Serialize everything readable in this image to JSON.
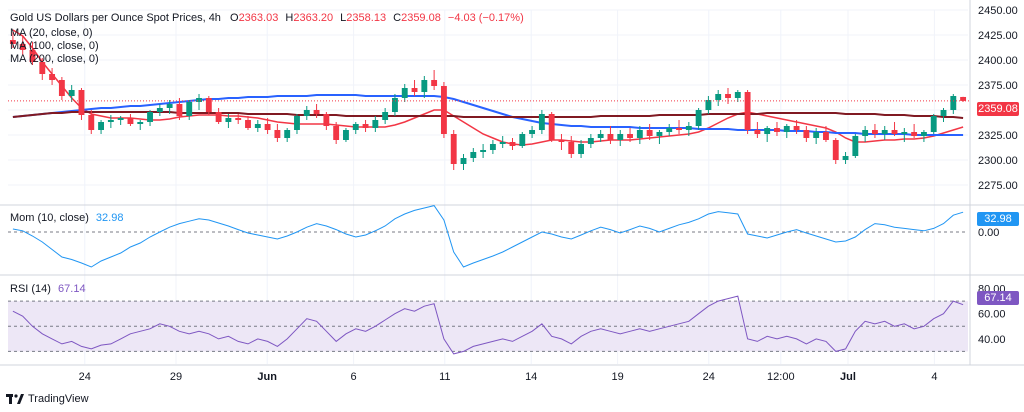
{
  "header": {
    "symbol": "Gold US Dollars per Ounce Spot Prices, 4h",
    "o_label": "O",
    "o_value": "2363.03",
    "h_label": "H",
    "h_value": "2363.20",
    "l_label": "L",
    "l_value": "2358.13",
    "c_label": "C",
    "c_value": "2359.08",
    "change": "−4.03 (−0.17%)"
  },
  "indicators": {
    "ma20": "MA (20, close, 0)",
    "ma100": "MA (100, close, 0)",
    "ma200": "MA (200, close, 0)",
    "mom_label": "Mom (10, close)",
    "mom_value": "32.98",
    "rsi_label": "RSI (14)",
    "rsi_value": "67.14"
  },
  "price_tag": "2359.08",
  "mom_tag": "32.98",
  "rsi_tag": "67.14",
  "brand": "TradingView",
  "colors": {
    "up": "#089981",
    "down": "#f23645",
    "ma20": "#f23645",
    "ma100": "#2962ff",
    "ma200": "#801922",
    "mom": "#2196f3",
    "rsi": "#7e57c2",
    "rsi_band": "#ede7f6"
  },
  "chart_data": [
    {
      "type": "candlestick",
      "title": "Gold US Dollars per Ounce Spot Prices, 4h",
      "ylim": [
        2275,
        2450
      ],
      "yticks": [
        "2450.00",
        "2425.00",
        "2400.00",
        "2375.00",
        "2350.00",
        "2325.00",
        "2300.00",
        "2275.00"
      ],
      "x_labels": [
        "24",
        "29",
        "Jun",
        "6",
        "11",
        "14",
        "19",
        "24",
        "12:00",
        "Jul",
        "4"
      ],
      "ohlc": [
        [
          2420,
          2428,
          2412,
          2416
        ],
        [
          2416,
          2424,
          2405,
          2410
        ],
        [
          2410,
          2418,
          2395,
          2398
        ],
        [
          2398,
          2402,
          2380,
          2386
        ],
        [
          2386,
          2392,
          2375,
          2380
        ],
        [
          2380,
          2383,
          2360,
          2364
        ],
        [
          2364,
          2375,
          2358,
          2370
        ],
        [
          2370,
          2372,
          2340,
          2345
        ],
        [
          2345,
          2350,
          2326,
          2330
        ],
        [
          2330,
          2340,
          2326,
          2338
        ],
        [
          2338,
          2345,
          2332,
          2340
        ],
        [
          2340,
          2344,
          2335,
          2342
        ],
        [
          2342,
          2346,
          2334,
          2336
        ],
        [
          2336,
          2340,
          2330,
          2338
        ],
        [
          2338,
          2350,
          2334,
          2348
        ],
        [
          2348,
          2356,
          2344,
          2352
        ],
        [
          2352,
          2360,
          2346,
          2356
        ],
        [
          2356,
          2362,
          2340,
          2344
        ],
        [
          2344,
          2360,
          2340,
          2358
        ],
        [
          2358,
          2366,
          2350,
          2362
        ],
        [
          2362,
          2364,
          2345,
          2348
        ],
        [
          2348,
          2352,
          2336,
          2338
        ],
        [
          2338,
          2346,
          2332,
          2342
        ],
        [
          2342,
          2346,
          2336,
          2340
        ],
        [
          2340,
          2344,
          2330,
          2332
        ],
        [
          2332,
          2340,
          2328,
          2336
        ],
        [
          2336,
          2342,
          2326,
          2330
        ],
        [
          2330,
          2336,
          2318,
          2322
        ],
        [
          2322,
          2332,
          2318,
          2330
        ],
        [
          2330,
          2346,
          2326,
          2344
        ],
        [
          2344,
          2354,
          2340,
          2350
        ],
        [
          2350,
          2356,
          2342,
          2346
        ],
        [
          2346,
          2348,
          2330,
          2334
        ],
        [
          2334,
          2338,
          2316,
          2320
        ],
        [
          2320,
          2332,
          2318,
          2330
        ],
        [
          2330,
          2338,
          2326,
          2336
        ],
        [
          2336,
          2340,
          2328,
          2332
        ],
        [
          2332,
          2344,
          2328,
          2340
        ],
        [
          2340,
          2352,
          2336,
          2348
        ],
        [
          2348,
          2366,
          2344,
          2362
        ],
        [
          2362,
          2376,
          2358,
          2372
        ],
        [
          2372,
          2380,
          2364,
          2368
        ],
        [
          2368,
          2384,
          2362,
          2380
        ],
        [
          2380,
          2390,
          2370,
          2374
        ],
        [
          2374,
          2378,
          2322,
          2326
        ],
        [
          2326,
          2330,
          2290,
          2296
        ],
        [
          2296,
          2306,
          2290,
          2302
        ],
        [
          2302,
          2312,
          2298,
          2308
        ],
        [
          2308,
          2316,
          2302,
          2310
        ],
        [
          2310,
          2320,
          2306,
          2316
        ],
        [
          2316,
          2324,
          2312,
          2318
        ],
        [
          2318,
          2322,
          2310,
          2314
        ],
        [
          2314,
          2328,
          2312,
          2326
        ],
        [
          2326,
          2334,
          2322,
          2330
        ],
        [
          2330,
          2350,
          2326,
          2346
        ],
        [
          2346,
          2348,
          2318,
          2320
        ],
        [
          2320,
          2326,
          2310,
          2318
        ],
        [
          2318,
          2324,
          2302,
          2306
        ],
        [
          2306,
          2320,
          2302,
          2316
        ],
        [
          2316,
          2326,
          2312,
          2322
        ],
        [
          2322,
          2330,
          2318,
          2326
        ],
        [
          2326,
          2334,
          2316,
          2320
        ],
        [
          2320,
          2330,
          2314,
          2326
        ],
        [
          2326,
          2332,
          2318,
          2322
        ],
        [
          2322,
          2334,
          2316,
          2330
        ],
        [
          2330,
          2336,
          2320,
          2324
        ],
        [
          2324,
          2330,
          2316,
          2328
        ],
        [
          2328,
          2336,
          2324,
          2332
        ],
        [
          2332,
          2340,
          2326,
          2330
        ],
        [
          2330,
          2338,
          2324,
          2334
        ],
        [
          2334,
          2352,
          2330,
          2350
        ],
        [
          2350,
          2364,
          2346,
          2360
        ],
        [
          2360,
          2370,
          2354,
          2366
        ],
        [
          2366,
          2372,
          2356,
          2362
        ],
        [
          2362,
          2370,
          2358,
          2368
        ],
        [
          2368,
          2370,
          2326,
          2330
        ],
        [
          2330,
          2338,
          2322,
          2326
        ],
        [
          2326,
          2334,
          2318,
          2332
        ],
        [
          2332,
          2338,
          2324,
          2328
        ],
        [
          2328,
          2336,
          2322,
          2334
        ],
        [
          2334,
          2340,
          2326,
          2330
        ],
        [
          2330,
          2334,
          2318,
          2322
        ],
        [
          2322,
          2332,
          2316,
          2328
        ],
        [
          2328,
          2334,
          2318,
          2320
        ],
        [
          2320,
          2322,
          2296,
          2300
        ],
        [
          2300,
          2308,
          2296,
          2304
        ],
        [
          2304,
          2326,
          2302,
          2324
        ],
        [
          2324,
          2334,
          2318,
          2330
        ],
        [
          2330,
          2336,
          2322,
          2326
        ],
        [
          2326,
          2334,
          2320,
          2330
        ],
        [
          2330,
          2338,
          2324,
          2326
        ],
        [
          2326,
          2332,
          2318,
          2328
        ],
        [
          2328,
          2336,
          2322,
          2324
        ],
        [
          2324,
          2330,
          2318,
          2328
        ],
        [
          2328,
          2346,
          2326,
          2344
        ],
        [
          2344,
          2352,
          2338,
          2350
        ],
        [
          2350,
          2366,
          2346,
          2364
        ],
        [
          2363.03,
          2363.2,
          2358.13,
          2359.08
        ]
      ],
      "series": [
        {
          "name": "MA (20, close, 0)",
          "values": [
            2430,
            2424,
            2412,
            2398,
            2386,
            2374,
            2362,
            2352,
            2346,
            2344,
            2342,
            2342,
            2342,
            2341,
            2340,
            2340,
            2341,
            2343,
            2344,
            2345,
            2345,
            2345,
            2344,
            2344,
            2343,
            2342,
            2340,
            2338,
            2337,
            2336,
            2336,
            2336,
            2336,
            2335,
            2334,
            2333,
            2333,
            2333,
            2333,
            2335,
            2338,
            2342,
            2346,
            2350,
            2350,
            2344,
            2338,
            2332,
            2326,
            2322,
            2318,
            2316,
            2315,
            2316,
            2318,
            2320,
            2320,
            2319,
            2318,
            2318,
            2319,
            2320,
            2320,
            2320,
            2321,
            2322,
            2323,
            2324,
            2325,
            2326,
            2328,
            2332,
            2337,
            2342,
            2346,
            2348,
            2346,
            2344,
            2342,
            2340,
            2338,
            2336,
            2334,
            2332,
            2328,
            2322,
            2318,
            2318,
            2319,
            2320,
            2320,
            2321,
            2321,
            2322,
            2324,
            2327,
            2330,
            2333
          ]
        },
        {
          "name": "MA (100, close, 0)",
          "values": [
            2343,
            2344,
            2345,
            2346,
            2347,
            2348,
            2349,
            2350,
            2351,
            2352,
            2352,
            2353,
            2354,
            2354,
            2355,
            2356,
            2357,
            2358,
            2359,
            2360,
            2361,
            2361,
            2362,
            2362,
            2363,
            2363,
            2363,
            2364,
            2364,
            2364,
            2364,
            2365,
            2365,
            2365,
            2365,
            2365,
            2364,
            2364,
            2364,
            2364,
            2364,
            2364,
            2364,
            2364,
            2363,
            2361,
            2358,
            2355,
            2352,
            2349,
            2346,
            2343,
            2341,
            2339,
            2337,
            2336,
            2335,
            2334,
            2334,
            2333,
            2333,
            2333,
            2333,
            2333,
            2332,
            2332,
            2332,
            2332,
            2332,
            2332,
            2331,
            2331,
            2331,
            2331,
            2330,
            2330,
            2330,
            2330,
            2330,
            2329,
            2329,
            2329,
            2328,
            2328,
            2327,
            2327,
            2327,
            2326,
            2326,
            2326,
            2326,
            2326,
            2325,
            2325,
            2325,
            2325,
            2325,
            2325
          ]
        },
        {
          "name": "MA (200, close, 0)",
          "values": [
            2343,
            2344,
            2345,
            2346,
            2347,
            2347,
            2348,
            2348,
            2348,
            2348,
            2348,
            2348,
            2348,
            2348,
            2348,
            2348,
            2348,
            2347,
            2347,
            2347,
            2347,
            2347,
            2347,
            2347,
            2346,
            2346,
            2346,
            2346,
            2346,
            2345,
            2345,
            2345,
            2345,
            2345,
            2344,
            2344,
            2344,
            2344,
            2344,
            2344,
            2344,
            2344,
            2344,
            2344,
            2344,
            2344,
            2343,
            2343,
            2343,
            2343,
            2343,
            2343,
            2343,
            2343,
            2343,
            2343,
            2343,
            2343,
            2343,
            2343,
            2344,
            2344,
            2344,
            2344,
            2344,
            2344,
            2345,
            2345,
            2345,
            2345,
            2345,
            2346,
            2346,
            2346,
            2346,
            2346,
            2346,
            2347,
            2347,
            2347,
            2347,
            2347,
            2347,
            2347,
            2347,
            2346,
            2346,
            2346,
            2346,
            2345,
            2345,
            2345,
            2344,
            2344,
            2344,
            2343,
            2343,
            2342
          ]
        }
      ]
    },
    {
      "type": "line",
      "title": "Mom (10, close)",
      "yticks": [
        "0.00"
      ],
      "series": [
        {
          "name": "Mom (10, close)",
          "values": [
            5,
            2,
            -8,
            -20,
            -35,
            -50,
            -55,
            -62,
            -70,
            -58,
            -50,
            -42,
            -30,
            -22,
            -10,
            0,
            8,
            14,
            18,
            22,
            20,
            15,
            10,
            4,
            -2,
            -6,
            -10,
            -14,
            -8,
            0,
            8,
            14,
            10,
            4,
            -4,
            -10,
            -6,
            2,
            10,
            22,
            30,
            36,
            40,
            44,
            20,
            -40,
            -70,
            -62,
            -55,
            -48,
            -40,
            -30,
            -20,
            -10,
            0,
            -4,
            -10,
            -14,
            -6,
            2,
            8,
            4,
            -2,
            4,
            10,
            6,
            0,
            6,
            12,
            16,
            22,
            30,
            34,
            32,
            30,
            -4,
            -8,
            -12,
            -6,
            0,
            4,
            -2,
            -8,
            -14,
            -20,
            -18,
            -10,
            4,
            14,
            12,
            8,
            6,
            4,
            2,
            6,
            14,
            28,
            32.98
          ]
        }
      ]
    },
    {
      "type": "line",
      "title": "RSI (14)",
      "ylim": [
        20,
        90
      ],
      "yticks": [
        "80.00",
        "60.00",
        "40.00"
      ],
      "bands": [
        30,
        50,
        70
      ],
      "series": [
        {
          "name": "RSI (14)",
          "values": [
            62,
            58,
            50,
            44,
            40,
            36,
            38,
            34,
            32,
            35,
            36,
            40,
            44,
            46,
            48,
            52,
            50,
            46,
            44,
            46,
            44,
            40,
            42,
            38,
            36,
            40,
            38,
            34,
            40,
            48,
            56,
            54,
            46,
            38,
            44,
            48,
            46,
            50,
            55,
            60,
            64,
            62,
            66,
            68,
            40,
            28,
            30,
            34,
            36,
            38,
            40,
            38,
            42,
            46,
            52,
            42,
            40,
            36,
            42,
            46,
            48,
            46,
            44,
            46,
            48,
            46,
            48,
            50,
            52,
            54,
            60,
            66,
            70,
            72,
            74,
            40,
            38,
            42,
            40,
            42,
            40,
            36,
            40,
            38,
            30,
            32,
            46,
            54,
            52,
            54,
            50,
            52,
            48,
            50,
            56,
            60,
            70,
            67.14
          ]
        }
      ]
    }
  ]
}
